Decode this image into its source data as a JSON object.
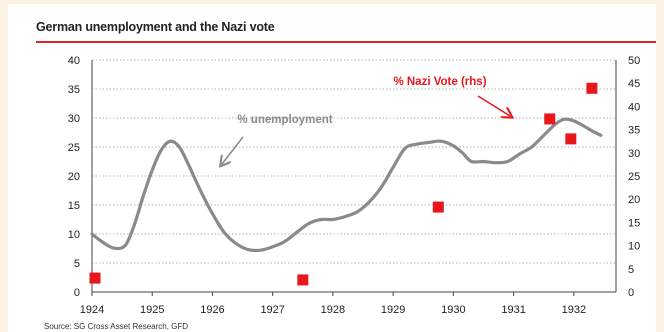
{
  "page": {
    "title": "German unemployment and the Nazi vote",
    "source": "Source: SG Cross Asset Research, GFD"
  },
  "colors": {
    "unemployment_line": "#8a8a8a",
    "nazi_vote_markers": "#e8171c",
    "title_rule": "#e0252a",
    "annotation_red": "#e8171c",
    "annotation_grey": "#8a8a8a"
  },
  "chart_data": {
    "type": "line",
    "title": "German unemployment and the Nazi vote",
    "xlabel": "",
    "ylabel": "",
    "y2label": "",
    "x_ticks": [
      "1924",
      "1925",
      "1926",
      "1927",
      "1928",
      "1929",
      "1930",
      "1931",
      "1932"
    ],
    "xlim": [
      1924,
      1932.7
    ],
    "ylim": [
      0,
      40
    ],
    "y_ticks": [
      0,
      5,
      10,
      15,
      20,
      25,
      30,
      35,
      40
    ],
    "y2lim": [
      0,
      50
    ],
    "y2_ticks": [
      0,
      5,
      10,
      15,
      20,
      25,
      30,
      35,
      40,
      45,
      50
    ],
    "grid": "horizontal dotted",
    "series": [
      {
        "name": "% unemployment",
        "axis": "left",
        "style": "line",
        "points": [
          [
            1924.0,
            10.0
          ],
          [
            1924.15,
            8.8
          ],
          [
            1924.35,
            7.6
          ],
          [
            1924.55,
            8.0
          ],
          [
            1924.7,
            11.5
          ],
          [
            1924.85,
            16.5
          ],
          [
            1925.0,
            21.0
          ],
          [
            1925.15,
            24.5
          ],
          [
            1925.3,
            26.0
          ],
          [
            1925.45,
            25.0
          ],
          [
            1925.6,
            22.0
          ],
          [
            1925.8,
            17.5
          ],
          [
            1926.0,
            13.5
          ],
          [
            1926.2,
            10.2
          ],
          [
            1926.4,
            8.3
          ],
          [
            1926.6,
            7.3
          ],
          [
            1926.8,
            7.2
          ],
          [
            1927.0,
            7.8
          ],
          [
            1927.2,
            8.7
          ],
          [
            1927.4,
            10.3
          ],
          [
            1927.6,
            11.8
          ],
          [
            1927.8,
            12.5
          ],
          [
            1928.0,
            12.5
          ],
          [
            1928.2,
            13.0
          ],
          [
            1928.4,
            13.8
          ],
          [
            1928.6,
            15.5
          ],
          [
            1928.8,
            18.0
          ],
          [
            1929.0,
            21.5
          ],
          [
            1929.2,
            24.8
          ],
          [
            1929.4,
            25.5
          ],
          [
            1929.6,
            25.8
          ],
          [
            1929.8,
            26.0
          ],
          [
            1930.0,
            25.2
          ],
          [
            1930.15,
            24.0
          ],
          [
            1930.3,
            22.5
          ],
          [
            1930.5,
            22.5
          ],
          [
            1930.7,
            22.3
          ],
          [
            1930.9,
            22.5
          ],
          [
            1931.1,
            23.8
          ],
          [
            1931.3,
            25.0
          ],
          [
            1931.5,
            27.0
          ],
          [
            1931.7,
            29.0
          ],
          [
            1931.85,
            29.8
          ],
          [
            1932.0,
            29.5
          ],
          [
            1932.15,
            28.7
          ],
          [
            1932.3,
            27.8
          ],
          [
            1932.45,
            27.0
          ]
        ]
      },
      {
        "name": "% Nazi Vote (rhs)",
        "axis": "right",
        "style": "square markers",
        "points": [
          [
            1924.05,
            3.0
          ],
          [
            1927.5,
            2.6
          ],
          [
            1929.75,
            18.3
          ],
          [
            1931.6,
            37.3
          ],
          [
            1931.95,
            33.0
          ],
          [
            1932.3,
            43.9
          ]
        ]
      }
    ],
    "annotations": [
      {
        "text": "% unemployment",
        "points_to": "unemployment line"
      },
      {
        "text": "% Nazi Vote (rhs)",
        "points_to": "Nazi vote markers"
      }
    ]
  }
}
